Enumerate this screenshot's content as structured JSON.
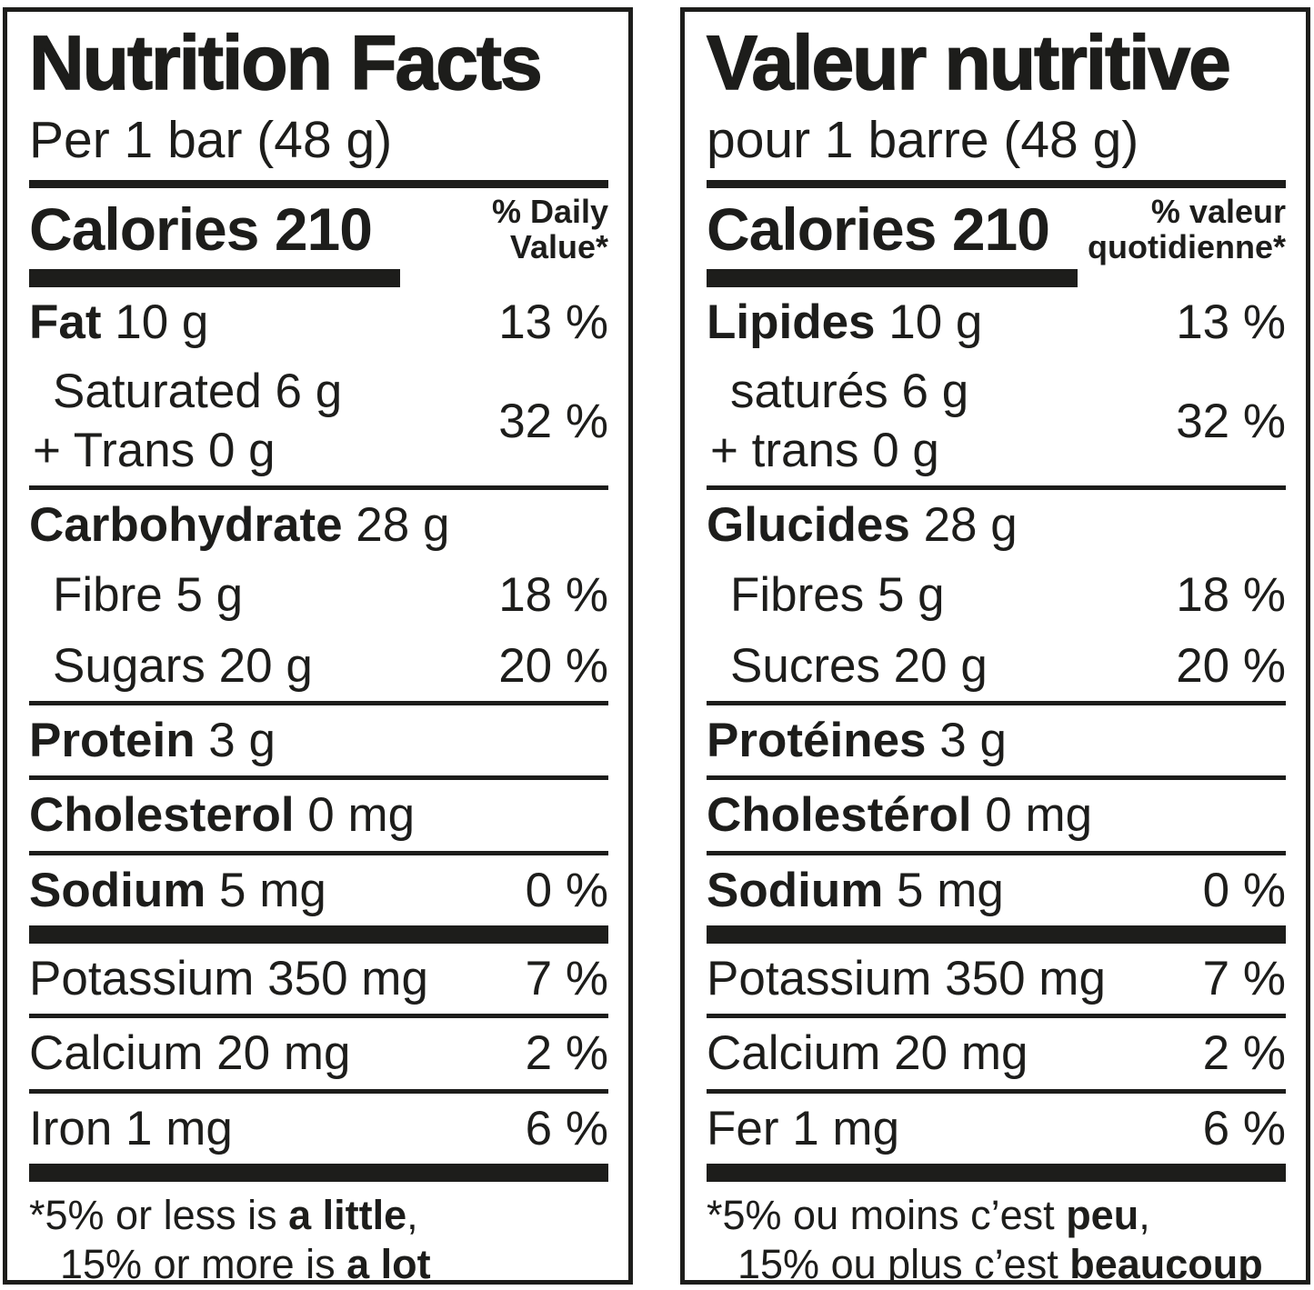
{
  "en": {
    "title": "Nutrition Facts",
    "serving": "Per 1 bar (48 g)",
    "calories_label": "Calories",
    "calories_value": "210",
    "dv_line1": "% Daily",
    "dv_line2": "Value*",
    "rows": {
      "fat": {
        "name": "Fat",
        "rest": " 10 g",
        "dv": "13 %"
      },
      "sat": {
        "line1": "Saturated 6 g",
        "line2": "+ Trans 0 g",
        "dv": "32 %"
      },
      "carb": {
        "name": "Carbohydrate",
        "rest": " 28 g"
      },
      "fibre": {
        "text": "Fibre 5 g",
        "dv": "18 %"
      },
      "sugars": {
        "text": "Sugars 20 g",
        "dv": "20 %"
      },
      "protein": {
        "name": "Protein",
        "rest": " 3 g"
      },
      "chol": {
        "name": "Cholesterol",
        "rest": " 0 mg"
      },
      "sodium": {
        "name": "Sodium",
        "rest": " 5 mg",
        "dv": "0 %"
      },
      "potassium": {
        "text": "Potassium 350 mg",
        "dv": "7 %"
      },
      "calcium": {
        "text": "Calcium 20 mg",
        "dv": "2 %"
      },
      "iron": {
        "text": "Iron 1 mg",
        "dv": "6 %"
      }
    },
    "footnote": {
      "l1_pre": "*5% or less is ",
      "l1_bold": "a little",
      "l1_post": ",",
      "l2_pre": "15% or more is ",
      "l2_bold": "a lot"
    }
  },
  "fr": {
    "title": "Valeur nutritive",
    "serving": "pour 1 barre (48 g)",
    "calories_label": "Calories",
    "calories_value": "210",
    "dv_line1": "% valeur",
    "dv_line2": "quotidienne*",
    "rows": {
      "fat": {
        "name": "Lipides",
        "rest": " 10 g",
        "dv": "13 %"
      },
      "sat": {
        "line1": "saturés 6 g",
        "line2": "+ trans 0 g",
        "dv": "32 %"
      },
      "carb": {
        "name": "Glucides",
        "rest": " 28 g"
      },
      "fibre": {
        "text": "Fibres 5 g",
        "dv": "18 %"
      },
      "sugars": {
        "text": "Sucres 20 g",
        "dv": "20 %"
      },
      "protein": {
        "name": "Protéines",
        "rest": " 3 g"
      },
      "chol": {
        "name": "Cholestérol",
        "rest": " 0 mg"
      },
      "sodium": {
        "name": "Sodium",
        "rest": " 5 mg",
        "dv": "0 %"
      },
      "potassium": {
        "text": "Potassium 350 mg",
        "dv": "7 %"
      },
      "calcium": {
        "text": "Calcium 20 mg",
        "dv": "2 %"
      },
      "iron": {
        "text": "Fer 1 mg",
        "dv": "6 %"
      }
    },
    "footnote": {
      "l1_pre": "*5% ou moins c’est ",
      "l1_bold": "peu",
      "l1_post": ",",
      "l2_pre": "15% ou plus c’est ",
      "l2_bold": "beaucoup"
    }
  },
  "colors": {
    "ink": "#1d1d1b",
    "background": "#ffffff"
  }
}
